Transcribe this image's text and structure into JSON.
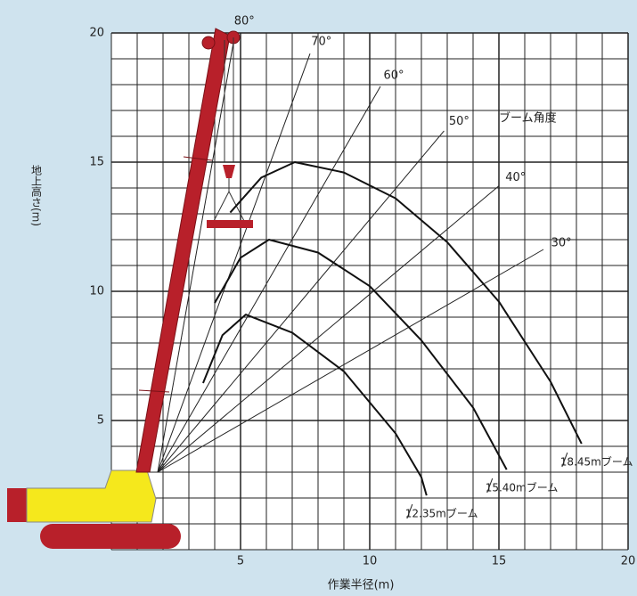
{
  "chart_data": {
    "type": "line",
    "x_label": "作業半径(m)",
    "y_label": "地上高さ(m)",
    "xlim": [
      0,
      20
    ],
    "ylim": [
      0,
      20
    ],
    "xticks": [
      5,
      10,
      15,
      20
    ],
    "yticks": [
      5,
      10,
      15,
      20
    ],
    "grid": true,
    "angle_title": "ブーム角度",
    "boom_angles": [
      {
        "value": 30,
        "label": "30°"
      },
      {
        "value": 40,
        "label": "40°"
      },
      {
        "value": 50,
        "label": "50°"
      },
      {
        "value": 60,
        "label": "60°"
      },
      {
        "value": 70,
        "label": "70°"
      },
      {
        "value": 80,
        "label": "80°"
      }
    ],
    "series": [
      {
        "name": "12.35mブーム",
        "color": "#111111",
        "x": [
          3.55,
          4.3,
          5.2,
          7,
          9,
          11,
          12,
          12.2
        ],
        "values": [
          6.45,
          8.3,
          9.1,
          8.4,
          6.9,
          4.5,
          2.8,
          2.1
        ]
      },
      {
        "name": "15.40mブーム",
        "color": "#111111",
        "x": [
          4.0,
          5.0,
          6.1,
          8,
          10,
          12,
          14,
          15.3
        ],
        "values": [
          9.55,
          11.3,
          12.0,
          11.5,
          10.2,
          8.1,
          5.5,
          3.1
        ]
      },
      {
        "name": "18.45mブーム",
        "color": "#111111",
        "x": [
          4.6,
          5.8,
          7.1,
          9,
          11,
          13,
          15,
          17,
          18.2
        ],
        "values": [
          13.05,
          14.4,
          15.0,
          14.6,
          13.6,
          11.9,
          9.6,
          6.5,
          4.1
        ]
      }
    ]
  }
}
